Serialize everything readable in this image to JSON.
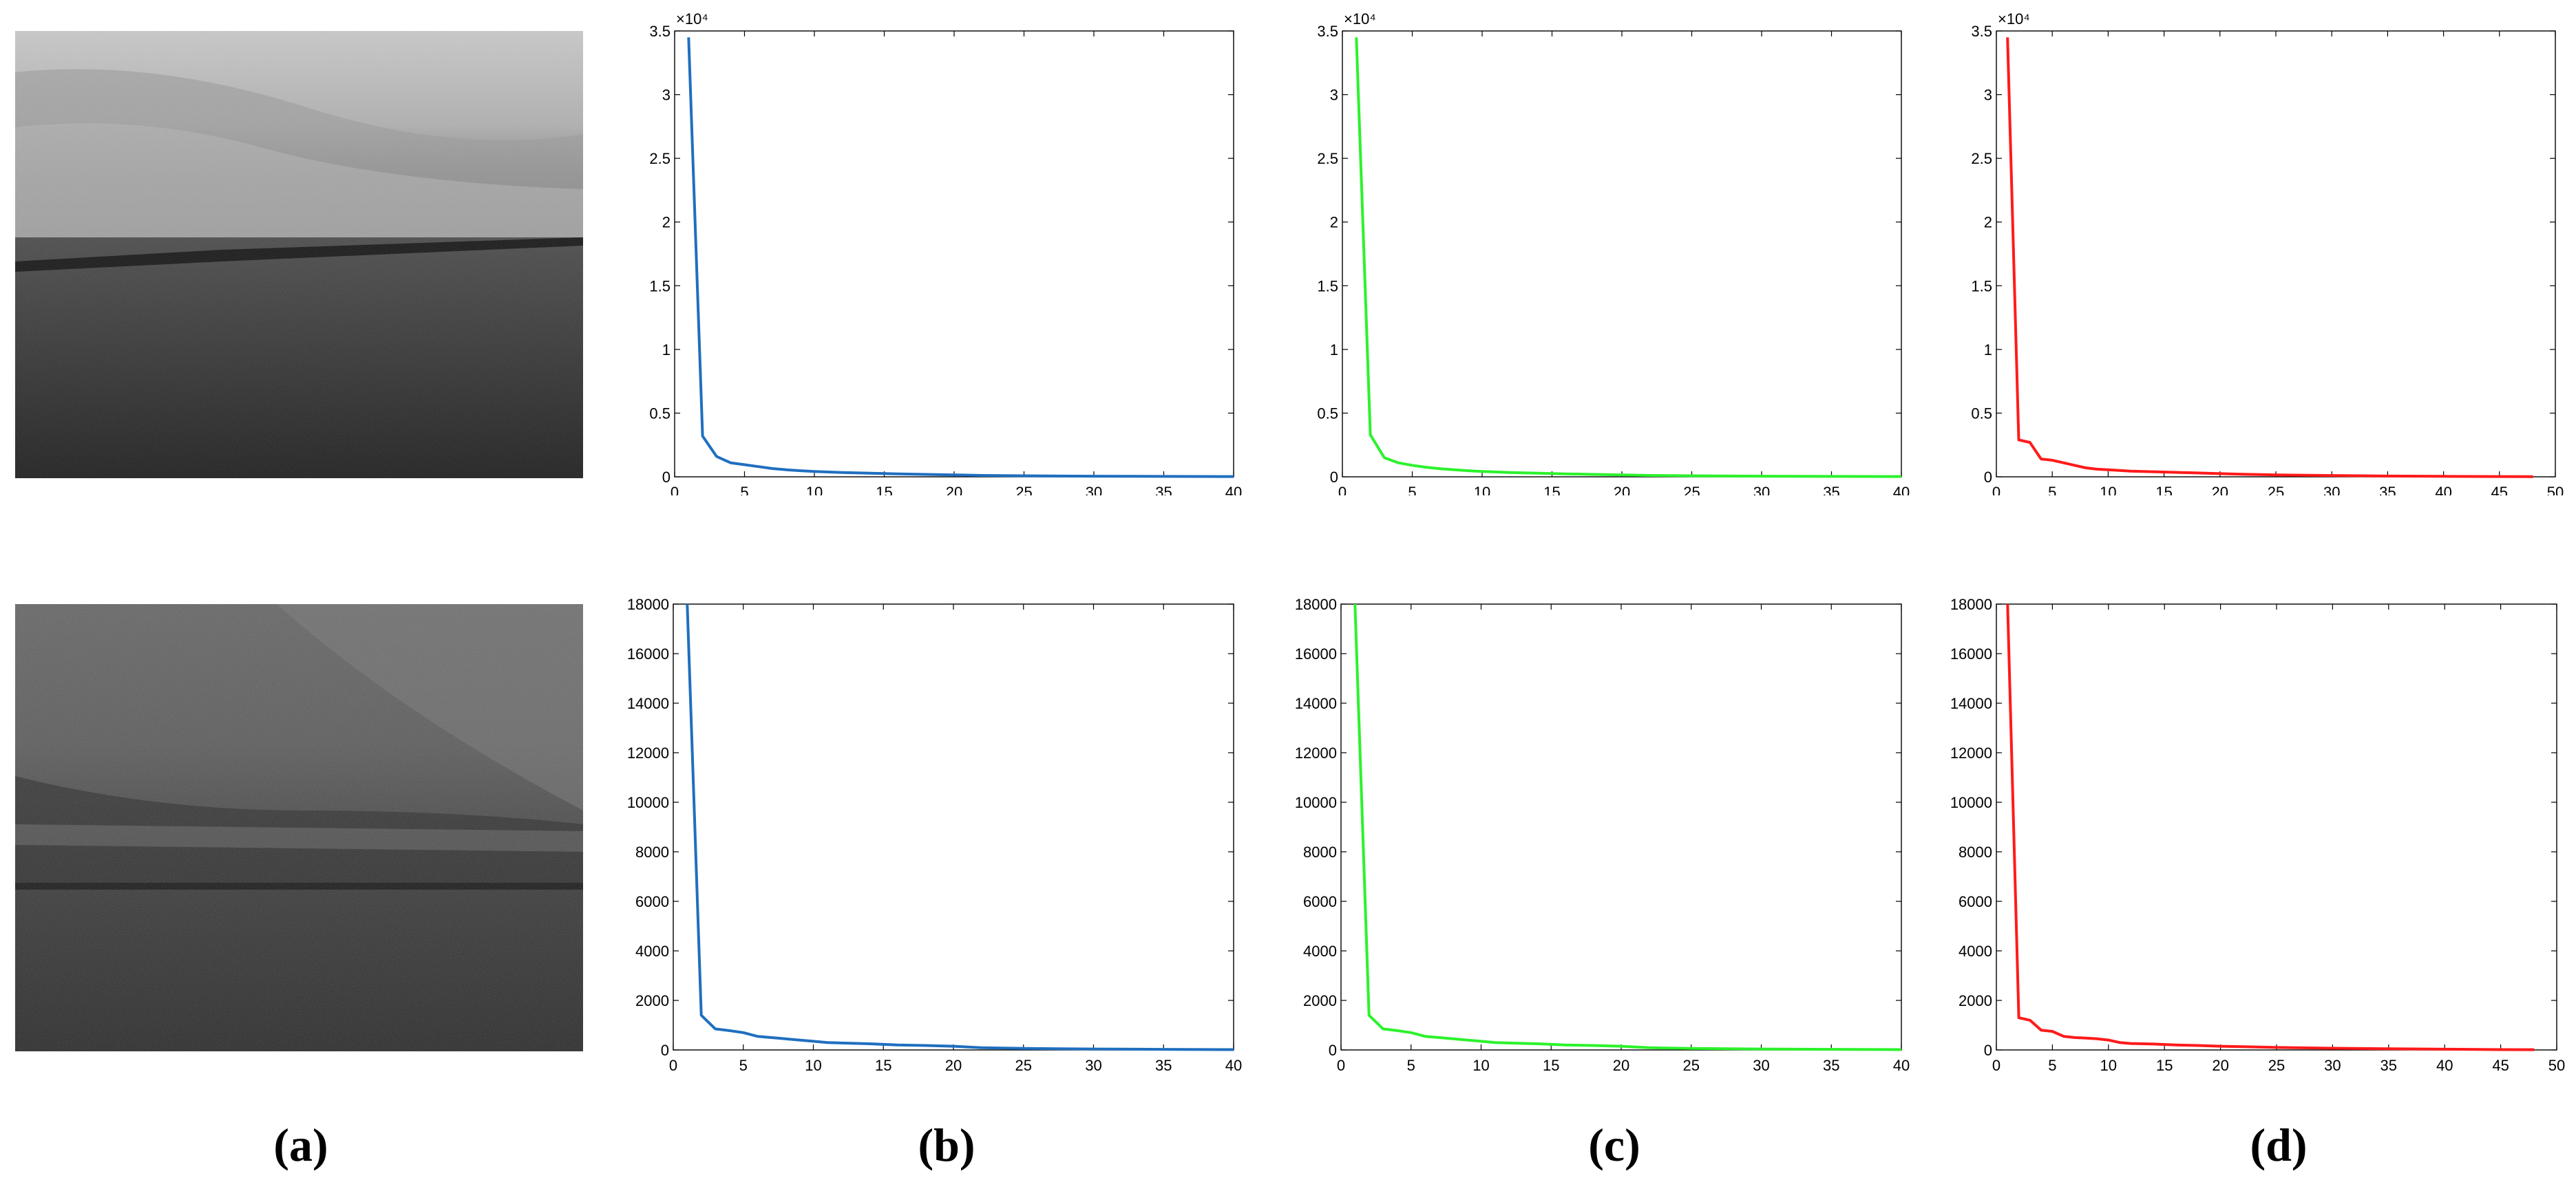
{
  "panel_labels": [
    "(a)",
    "(b)",
    "(c)",
    "(d)"
  ],
  "chart_data": [
    {
      "type": "line",
      "panel": "(b)",
      "row": 1,
      "color": "#1f6fbf",
      "ylim": [
        0,
        35000
      ],
      "yticks": [
        0,
        0.5,
        1,
        1.5,
        2,
        2.5,
        3,
        3.5
      ],
      "y_multiplier": "×10⁴",
      "xlim": [
        0,
        40
      ],
      "xticks": [
        0,
        5,
        10,
        15,
        20,
        25,
        30,
        35,
        40
      ],
      "x": [
        1,
        2,
        3,
        4,
        5,
        6,
        7,
        8,
        9,
        10,
        12,
        14,
        16,
        18,
        20,
        22,
        25,
        30,
        35,
        40
      ],
      "y": [
        34500,
        3200,
        1600,
        1100,
        950,
        800,
        650,
        550,
        480,
        420,
        340,
        280,
        230,
        190,
        150,
        110,
        80,
        50,
        30,
        20
      ],
      "grid": false,
      "legend": "none"
    },
    {
      "type": "line",
      "panel": "(c)",
      "row": 1,
      "color": "#2cf22c",
      "ylim": [
        0,
        35000
      ],
      "yticks": [
        0,
        0.5,
        1,
        1.5,
        2,
        2.5,
        3,
        3.5
      ],
      "y_multiplier": "×10⁴",
      "xlim": [
        0,
        40
      ],
      "xticks": [
        0,
        5,
        10,
        15,
        20,
        25,
        30,
        35,
        40
      ],
      "x": [
        1,
        2,
        3,
        4,
        5,
        6,
        7,
        8,
        9,
        10,
        12,
        14,
        16,
        18,
        20,
        22,
        25,
        30,
        35,
        40
      ],
      "y": [
        34500,
        3300,
        1500,
        1100,
        900,
        750,
        640,
        550,
        480,
        420,
        340,
        280,
        230,
        190,
        150,
        110,
        80,
        50,
        30,
        20
      ],
      "grid": false,
      "legend": "none"
    },
    {
      "type": "line",
      "panel": "(d)",
      "row": 1,
      "color": "#ff1a1a",
      "ylim": [
        0,
        35000
      ],
      "yticks": [
        0,
        0.5,
        1,
        1.5,
        2,
        2.5,
        3,
        3.5
      ],
      "y_multiplier": "×10⁴",
      "xlim": [
        0,
        50
      ],
      "xticks": [
        0,
        5,
        10,
        15,
        20,
        25,
        30,
        35,
        40,
        45,
        50
      ],
      "x": [
        1,
        2,
        3,
        4,
        5,
        6,
        7,
        8,
        9,
        10,
        12,
        14,
        16,
        18,
        20,
        22,
        25,
        30,
        35,
        40,
        45,
        48
      ],
      "y": [
        34500,
        2900,
        2700,
        1400,
        1300,
        1100,
        900,
        700,
        600,
        550,
        450,
        400,
        350,
        300,
        250,
        200,
        150,
        100,
        60,
        40,
        20,
        10
      ],
      "grid": false,
      "legend": "none"
    },
    {
      "type": "line",
      "panel": "(b)",
      "row": 2,
      "color": "#1f6fbf",
      "ylim": [
        0,
        18000
      ],
      "yticks": [
        0,
        2000,
        4000,
        6000,
        8000,
        10000,
        12000,
        14000,
        16000,
        18000
      ],
      "xlim": [
        0,
        40
      ],
      "xticks": [
        0,
        5,
        10,
        15,
        20,
        25,
        30,
        35,
        40
      ],
      "x": [
        1,
        2,
        3,
        4,
        5,
        6,
        7,
        8,
        9,
        10,
        11,
        12,
        14,
        16,
        18,
        20,
        22,
        25,
        30,
        35,
        40
      ],
      "y": [
        18000,
        1400,
        850,
        780,
        700,
        550,
        500,
        450,
        400,
        350,
        300,
        280,
        250,
        200,
        180,
        150,
        90,
        60,
        40,
        25,
        15
      ],
      "grid": false,
      "legend": "none"
    },
    {
      "type": "line",
      "panel": "(c)",
      "row": 2,
      "color": "#2cf22c",
      "ylim": [
        0,
        18000
      ],
      "yticks": [
        0,
        2000,
        4000,
        6000,
        8000,
        10000,
        12000,
        14000,
        16000,
        18000
      ],
      "xlim": [
        0,
        40
      ],
      "xticks": [
        0,
        5,
        10,
        15,
        20,
        25,
        30,
        35,
        40
      ],
      "x": [
        1,
        2,
        3,
        4,
        5,
        6,
        7,
        8,
        9,
        10,
        11,
        12,
        14,
        16,
        18,
        20,
        22,
        25,
        30,
        35,
        40
      ],
      "y": [
        18000,
        1400,
        850,
        780,
        700,
        550,
        500,
        450,
        400,
        350,
        300,
        280,
        250,
        200,
        180,
        150,
        90,
        60,
        40,
        25,
        15
      ],
      "grid": false,
      "legend": "none"
    },
    {
      "type": "line",
      "panel": "(d)",
      "row": 2,
      "color": "#ff1a1a",
      "ylim": [
        0,
        18000
      ],
      "yticks": [
        0,
        2000,
        4000,
        6000,
        8000,
        10000,
        12000,
        14000,
        16000,
        18000
      ],
      "xlim": [
        0,
        50
      ],
      "xticks": [
        0,
        5,
        10,
        15,
        20,
        25,
        30,
        35,
        40,
        45,
        50
      ],
      "x": [
        1,
        2,
        3,
        4,
        5,
        6,
        7,
        8,
        9,
        10,
        11,
        12,
        14,
        16,
        18,
        20,
        22,
        25,
        30,
        35,
        40,
        45,
        48
      ],
      "y": [
        18000,
        1300,
        1200,
        800,
        750,
        550,
        500,
        480,
        450,
        400,
        300,
        260,
        240,
        200,
        180,
        150,
        130,
        100,
        70,
        50,
        30,
        15,
        10
      ],
      "grid": false,
      "legend": "none"
    }
  ]
}
